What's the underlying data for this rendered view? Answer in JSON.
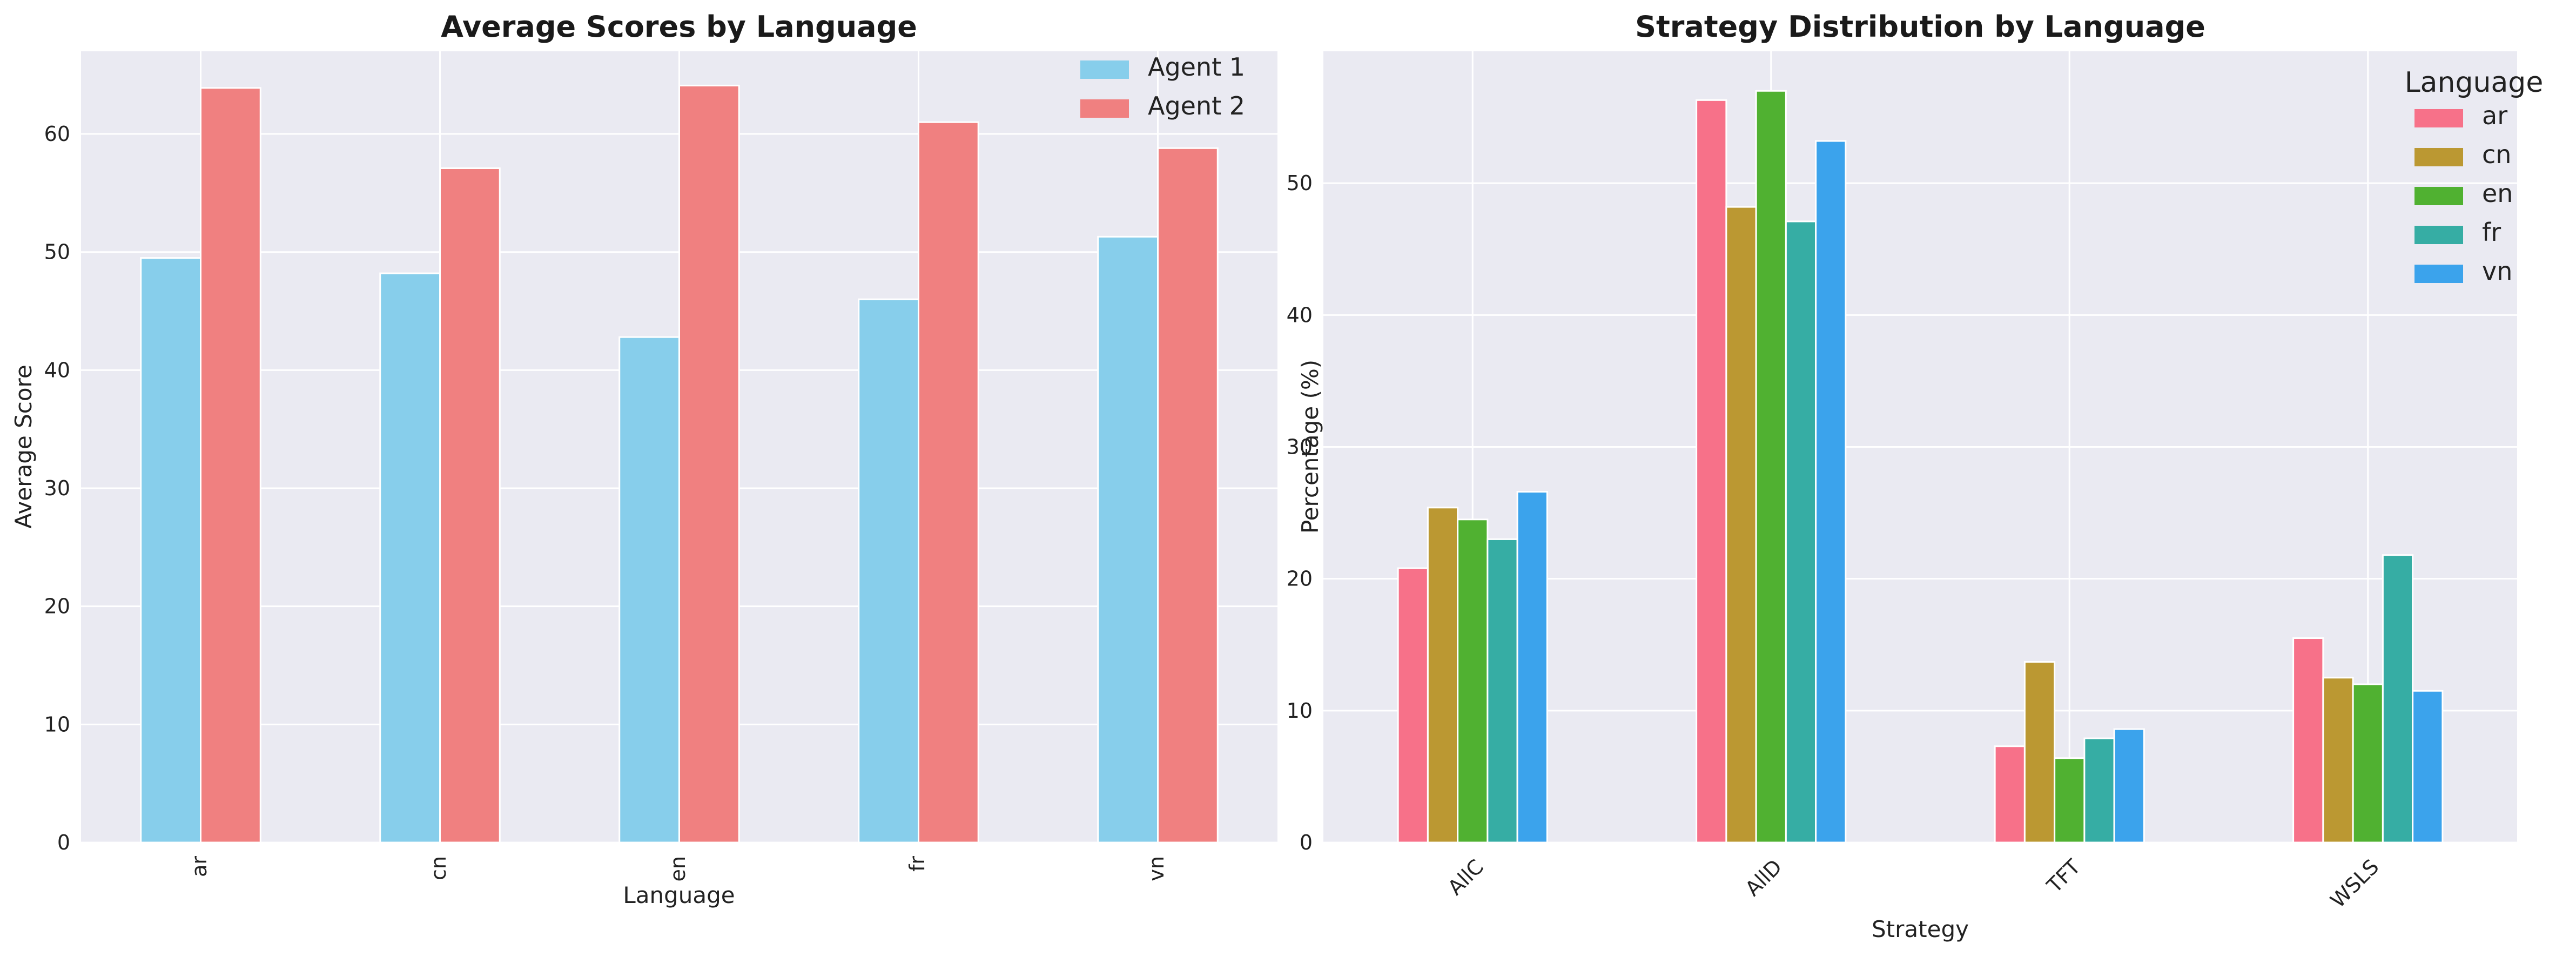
{
  "chart_data": [
    {
      "type": "bar",
      "title": "Average Scores by Language",
      "xlabel": "Language",
      "ylabel": "Average Score",
      "categories": [
        "ar",
        "cn",
        "en",
        "fr",
        "vn"
      ],
      "series": [
        {
          "name": "Agent 1",
          "color": "#87ceeb",
          "values": [
            49.5,
            48.2,
            42.8,
            46.0,
            51.3
          ]
        },
        {
          "name": "Agent 2",
          "color": "#f08080",
          "values": [
            63.9,
            57.1,
            64.1,
            61.0,
            58.8
          ]
        }
      ],
      "ylim": [
        0,
        67
      ],
      "yticks": [
        0,
        10,
        20,
        30,
        40,
        50,
        60
      ],
      "legend_title": "",
      "legend_position": "top-right",
      "grid": true,
      "xtick_rotation": 90
    },
    {
      "type": "bar",
      "title": "Strategy Distribution by Language",
      "xlabel": "Strategy",
      "ylabel": "Percentage (%)",
      "categories": [
        "AllC",
        "AllD",
        "TFT",
        "WSLS"
      ],
      "series": [
        {
          "name": "ar",
          "color": "#f77189",
          "values": [
            20.8,
            56.3,
            7.3,
            15.5
          ]
        },
        {
          "name": "cn",
          "color": "#bb9832",
          "values": [
            25.4,
            48.2,
            13.7,
            12.5
          ]
        },
        {
          "name": "en",
          "color": "#50b131",
          "values": [
            24.5,
            57.0,
            6.4,
            12.0
          ]
        },
        {
          "name": "fr",
          "color": "#36ada4",
          "values": [
            23.0,
            47.1,
            7.9,
            21.8
          ]
        },
        {
          "name": "vn",
          "color": "#3ba3ec",
          "values": [
            26.6,
            53.2,
            8.6,
            11.5
          ]
        }
      ],
      "ylim": [
        0,
        60
      ],
      "yticks": [
        0,
        10,
        20,
        30,
        40,
        50
      ],
      "legend_title": "Language",
      "legend_position": "top-right",
      "grid": true,
      "xtick_rotation": 45
    }
  ]
}
